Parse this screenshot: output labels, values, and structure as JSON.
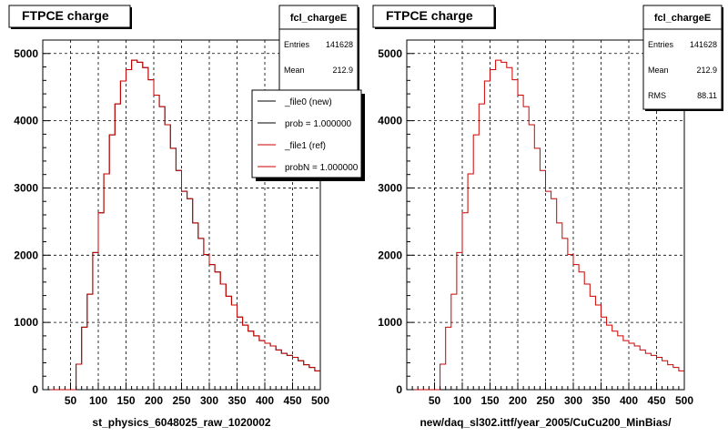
{
  "panels": [
    {
      "title": "FTPCE charge",
      "stats": {
        "name": "fcl_chargeE",
        "rows": [
          {
            "label": "Entries",
            "value": "141628"
          },
          {
            "label": "Mean",
            "value": "212.9"
          }
        ]
      },
      "legend": [
        {
          "label": "_file0 (new)",
          "color": "#000000"
        },
        {
          "label": "prob = 1.000000",
          "color": "#000000"
        },
        {
          "label": "_file1 (ref)",
          "color": "#cc0000"
        },
        {
          "label": "probN = 1.000000",
          "color": "#cc0000"
        }
      ],
      "xlabel": "st_physics_6048025_raw_1020002"
    },
    {
      "title": "FTPCE charge",
      "stats": {
        "name": "fcl_chargeE",
        "rows": [
          {
            "label": "Entries",
            "value": "141628"
          },
          {
            "label": "Mean",
            "value": "212.9"
          },
          {
            "label": "RMS",
            "value": "88.11"
          }
        ]
      },
      "legend": [],
      "xlabel": "new/daq_sl302.ittf/year_2005/CuCu200_MinBias/"
    }
  ],
  "colors": {
    "histogram": "#cc0000",
    "grid": "#000000",
    "frame": "#000000",
    "shadow": "#000000"
  },
  "chart_data": [
    {
      "type": "bar",
      "title": "FTPCE charge",
      "xlabel": "st_physics_6048025_raw_1020002",
      "ylabel": "",
      "xlim": [
        0,
        500
      ],
      "ylim": [
        0,
        5200
      ],
      "xticks": [
        50,
        100,
        150,
        200,
        250,
        300,
        350,
        400,
        450,
        500
      ],
      "yticks": [
        0,
        1000,
        2000,
        3000,
        4000,
        5000
      ],
      "grid": true,
      "bin_width": 10,
      "series": [
        {
          "name": "_file0 (new)",
          "color": "#000000",
          "values": [
            0,
            0,
            0,
            0,
            0,
            0,
            380,
            930,
            1420,
            2040,
            2630,
            3210,
            3790,
            4250,
            4590,
            4760,
            4900,
            4870,
            4790,
            4610,
            4380,
            4210,
            3940,
            3590,
            3260,
            2950,
            2840,
            2480,
            2250,
            2010,
            1860,
            1750,
            1570,
            1390,
            1260,
            1080,
            960,
            870,
            800,
            730,
            690,
            650,
            590,
            540,
            510,
            480,
            430,
            370,
            330,
            280
          ]
        },
        {
          "name": "_file1 (ref)",
          "color": "#cc0000",
          "values": [
            0,
            0,
            0,
            0,
            0,
            0,
            380,
            930,
            1420,
            2040,
            2630,
            3210,
            3790,
            4250,
            4590,
            4760,
            4900,
            4870,
            4790,
            4610,
            4380,
            4210,
            3940,
            3590,
            3260,
            2950,
            2840,
            2480,
            2250,
            2010,
            1860,
            1750,
            1570,
            1390,
            1260,
            1080,
            960,
            870,
            800,
            730,
            690,
            650,
            590,
            540,
            510,
            480,
            430,
            370,
            330,
            280
          ]
        }
      ]
    },
    {
      "type": "bar",
      "title": "FTPCE charge",
      "xlabel": "new/daq_sl302.ittf/year_2005/CuCu200_MinBias/",
      "ylabel": "",
      "xlim": [
        0,
        500
      ],
      "ylim": [
        0,
        5200
      ],
      "xticks": [
        50,
        100,
        150,
        200,
        250,
        300,
        350,
        400,
        450,
        500
      ],
      "yticks": [
        0,
        1000,
        2000,
        3000,
        4000,
        5000
      ],
      "grid": true,
      "bin_width": 10,
      "series": [
        {
          "name": "",
          "color": "#cc0000",
          "values": [
            0,
            0,
            0,
            0,
            0,
            0,
            380,
            930,
            1420,
            2040,
            2630,
            3210,
            3790,
            4250,
            4590,
            4760,
            4900,
            4870,
            4790,
            4610,
            4380,
            4210,
            3940,
            3590,
            3260,
            2950,
            2840,
            2480,
            2250,
            2010,
            1860,
            1750,
            1570,
            1390,
            1260,
            1080,
            960,
            870,
            800,
            730,
            690,
            650,
            590,
            540,
            510,
            480,
            430,
            370,
            330,
            280
          ]
        }
      ]
    }
  ]
}
